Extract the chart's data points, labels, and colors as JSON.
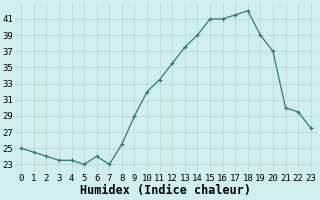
{
  "x": [
    0,
    1,
    2,
    3,
    4,
    5,
    6,
    7,
    8,
    9,
    10,
    11,
    12,
    13,
    14,
    15,
    16,
    17,
    18,
    19,
    20,
    21,
    22,
    23
  ],
  "y": [
    25,
    24.5,
    24,
    23.5,
    23.5,
    23,
    24,
    23,
    25.5,
    29,
    32,
    33.5,
    35.5,
    37.5,
    39,
    41,
    41,
    41.5,
    42,
    39,
    37,
    30,
    29.5,
    27.5
  ],
  "line_color": "#2e7d6e",
  "marker": "+",
  "marker_color": "#2e7d6e",
  "bg_color": "#d0eeee",
  "grid_color": "#c0d8d8",
  "xlabel": "Humidex (Indice chaleur)",
  "xlim": [
    -0.5,
    23.5
  ],
  "ylim": [
    22.0,
    43.0
  ],
  "yticks": [
    23,
    25,
    27,
    29,
    31,
    33,
    35,
    37,
    39,
    41
  ],
  "xticks": [
    0,
    1,
    2,
    3,
    4,
    5,
    6,
    7,
    8,
    9,
    10,
    11,
    12,
    13,
    14,
    15,
    16,
    17,
    18,
    19,
    20,
    21,
    22,
    23
  ],
  "tick_label_fontsize": 6.5,
  "xlabel_fontsize": 8.5
}
